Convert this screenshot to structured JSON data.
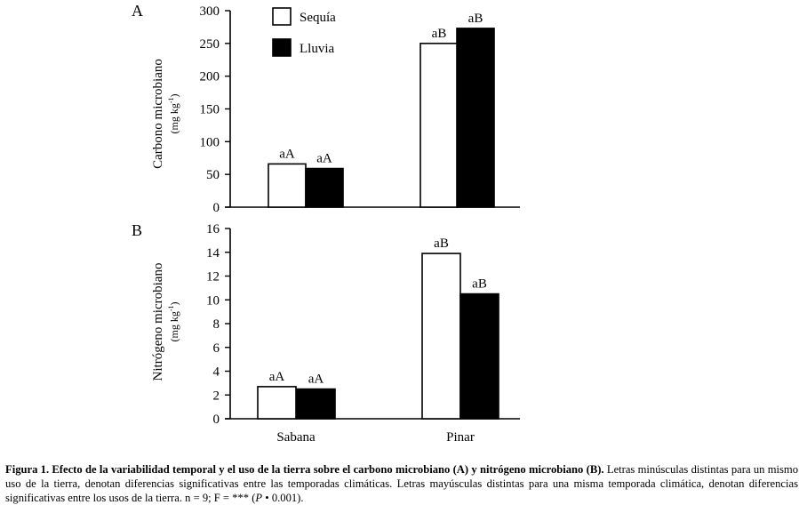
{
  "chart_data": [
    {
      "type": "bar",
      "panel_letter": "A",
      "ylabel": "Carbono microbiano",
      "yunit": "(mg kg",
      "yunit_sup": "-1",
      "yunit_close": ")",
      "ylim": [
        0,
        300
      ],
      "yticks": [
        0,
        50,
        100,
        150,
        200,
        250,
        300
      ],
      "categories": [
        "Sabana",
        "Pinar"
      ],
      "series": [
        {
          "name": "Sequía",
          "color": "#ffffff",
          "values": [
            66,
            250
          ],
          "labels": [
            "aA",
            "aB"
          ]
        },
        {
          "name": "Lluvia",
          "color": "#000000",
          "values": [
            59,
            273
          ],
          "labels": [
            "aA",
            "aB"
          ]
        }
      ],
      "legend": {
        "placement": "top-center",
        "items": [
          "Sequía",
          "Lluvia"
        ]
      }
    },
    {
      "type": "bar",
      "panel_letter": "B",
      "ylabel": "Nitrógeno microbiano",
      "yunit": "(mg kg",
      "yunit_sup": "-1",
      "yunit_close": ")",
      "ylim": [
        0,
        16
      ],
      "yticks": [
        0,
        2,
        4,
        6,
        8,
        10,
        12,
        14,
        16
      ],
      "categories": [
        "Sabana",
        "Pinar"
      ],
      "series": [
        {
          "name": "Sequía",
          "color": "#ffffff",
          "values": [
            2.7,
            13.9
          ],
          "labels": [
            "aA",
            "aB"
          ]
        },
        {
          "name": "Lluvia",
          "color": "#000000",
          "values": [
            2.5,
            10.5
          ],
          "labels": [
            "aA",
            "aB"
          ]
        }
      ]
    }
  ],
  "caption": {
    "bold": "Figura 1. Efecto de la variabilidad temporal y el uso de la tierra sobre el carbono microbiano (A) y nitrógeno microbiano (B).",
    "text_before_p": " Letras minúsculas distintas para un mismo uso de la tierra, denotan diferencias significativas entre las temporadas climáticas. Letras mayúsculas distintas para una misma temporada climática, denotan diferencias significativas entre los usos de la tierra. n = 9; F = *** (",
    "p_symbol": "P",
    "text_after_p": " •    0.001)."
  }
}
